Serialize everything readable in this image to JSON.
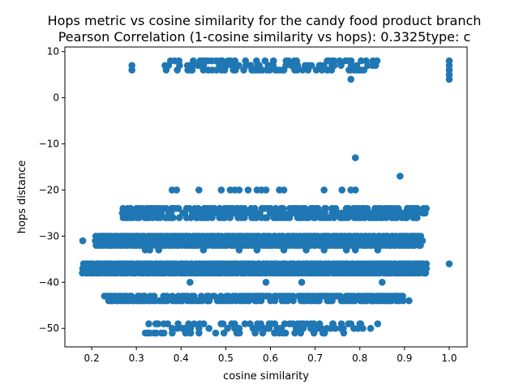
{
  "chart_data": {
    "type": "scatter",
    "title": "Hops metric vs cosine similarity for the candy food product branch",
    "subtitle": "Pearson Correlation (1-cosine similarity vs hops): 0.3325type: c",
    "xlabel": "cosine similarity",
    "ylabel": "hops distance",
    "xlim": [
      0.14,
      1.04
    ],
    "ylim": [
      -54,
      11
    ],
    "xticks": [
      0.2,
      0.3,
      0.4,
      0.5,
      0.6,
      0.7,
      0.8,
      0.9,
      1.0
    ],
    "yticks": [
      10,
      0,
      -10,
      -20,
      -30,
      -40,
      -50
    ],
    "grid": false,
    "point_color": "#1f77b4",
    "bands": [
      {
        "y": [
          6,
          8
        ],
        "xrange": [
          0.36,
          0.84
        ],
        "density": 0.5
      },
      {
        "y": [
          -26,
          -24
        ],
        "xrange": [
          0.27,
          0.95
        ],
        "density": 0.75
      },
      {
        "y": [
          -32,
          -30
        ],
        "xrange": [
          0.21,
          0.94
        ],
        "density": 1.0
      },
      {
        "y": [
          -38,
          -36
        ],
        "xrange": [
          0.18,
          0.95
        ],
        "density": 1.0
      },
      {
        "y": [
          -44,
          -43
        ],
        "xrange": [
          0.23,
          0.9
        ],
        "density": 0.85
      },
      {
        "y": [
          -51,
          -49
        ],
        "xrange": [
          0.32,
          0.84
        ],
        "density": 0.3
      }
    ],
    "points": [
      {
        "x": 0.29,
        "y": 7
      },
      {
        "x": 0.29,
        "y": 6
      },
      {
        "x": 0.78,
        "y": 4
      },
      {
        "x": 1.0,
        "y": 4
      },
      {
        "x": 1.0,
        "y": 5
      },
      {
        "x": 1.0,
        "y": 6
      },
      {
        "x": 1.0,
        "y": 7
      },
      {
        "x": 1.0,
        "y": 8
      },
      {
        "x": 0.79,
        "y": -13
      },
      {
        "x": 0.89,
        "y": -17
      },
      {
        "x": 0.38,
        "y": -20
      },
      {
        "x": 0.39,
        "y": -20
      },
      {
        "x": 0.44,
        "y": -20
      },
      {
        "x": 0.49,
        "y": -20
      },
      {
        "x": 0.51,
        "y": -20
      },
      {
        "x": 0.52,
        "y": -20
      },
      {
        "x": 0.53,
        "y": -20
      },
      {
        "x": 0.55,
        "y": -20
      },
      {
        "x": 0.57,
        "y": -20
      },
      {
        "x": 0.58,
        "y": -20
      },
      {
        "x": 0.59,
        "y": -20
      },
      {
        "x": 0.62,
        "y": -20
      },
      {
        "x": 0.63,
        "y": -20
      },
      {
        "x": 0.72,
        "y": -20
      },
      {
        "x": 0.76,
        "y": -20
      },
      {
        "x": 0.78,
        "y": -20
      },
      {
        "x": 0.79,
        "y": -20
      },
      {
        "x": 0.18,
        "y": -31
      },
      {
        "x": 0.3,
        "y": -30
      },
      {
        "x": 0.32,
        "y": -33
      },
      {
        "x": 0.33,
        "y": -33
      },
      {
        "x": 0.35,
        "y": -33
      },
      {
        "x": 0.45,
        "y": -33
      },
      {
        "x": 0.53,
        "y": -33
      },
      {
        "x": 0.57,
        "y": -33
      },
      {
        "x": 0.63,
        "y": -33
      },
      {
        "x": 0.68,
        "y": -33
      },
      {
        "x": 0.72,
        "y": -33
      },
      {
        "x": 0.77,
        "y": -33
      },
      {
        "x": 0.79,
        "y": -33
      },
      {
        "x": 0.84,
        "y": -33
      },
      {
        "x": 0.94,
        "y": -31
      },
      {
        "x": 1.0,
        "y": -36
      },
      {
        "x": 0.18,
        "y": -37
      },
      {
        "x": 0.93,
        "y": -36
      },
      {
        "x": 0.94,
        "y": -36
      },
      {
        "x": 0.42,
        "y": -40
      },
      {
        "x": 0.59,
        "y": -40
      },
      {
        "x": 0.67,
        "y": -40
      },
      {
        "x": 0.85,
        "y": -40
      },
      {
        "x": 0.88,
        "y": -43
      },
      {
        "x": 0.91,
        "y": -44
      },
      {
        "x": 0.83,
        "y": -44
      },
      {
        "x": 0.86,
        "y": -44
      },
      {
        "x": 0.32,
        "y": -51
      },
      {
        "x": 0.33,
        "y": -51
      },
      {
        "x": 0.41,
        "y": -51
      },
      {
        "x": 0.42,
        "y": -51
      },
      {
        "x": 0.44,
        "y": -51
      },
      {
        "x": 0.44,
        "y": -50
      },
      {
        "x": 0.52,
        "y": -50
      },
      {
        "x": 0.53,
        "y": -50
      },
      {
        "x": 0.65,
        "y": -49
      },
      {
        "x": 0.71,
        "y": -49
      },
      {
        "x": 0.74,
        "y": -49
      },
      {
        "x": 0.78,
        "y": -49
      },
      {
        "x": 0.8,
        "y": -49
      },
      {
        "x": 0.84,
        "y": -49
      },
      {
        "x": 0.37,
        "y": -49
      },
      {
        "x": 0.38,
        "y": -50
      }
    ]
  }
}
